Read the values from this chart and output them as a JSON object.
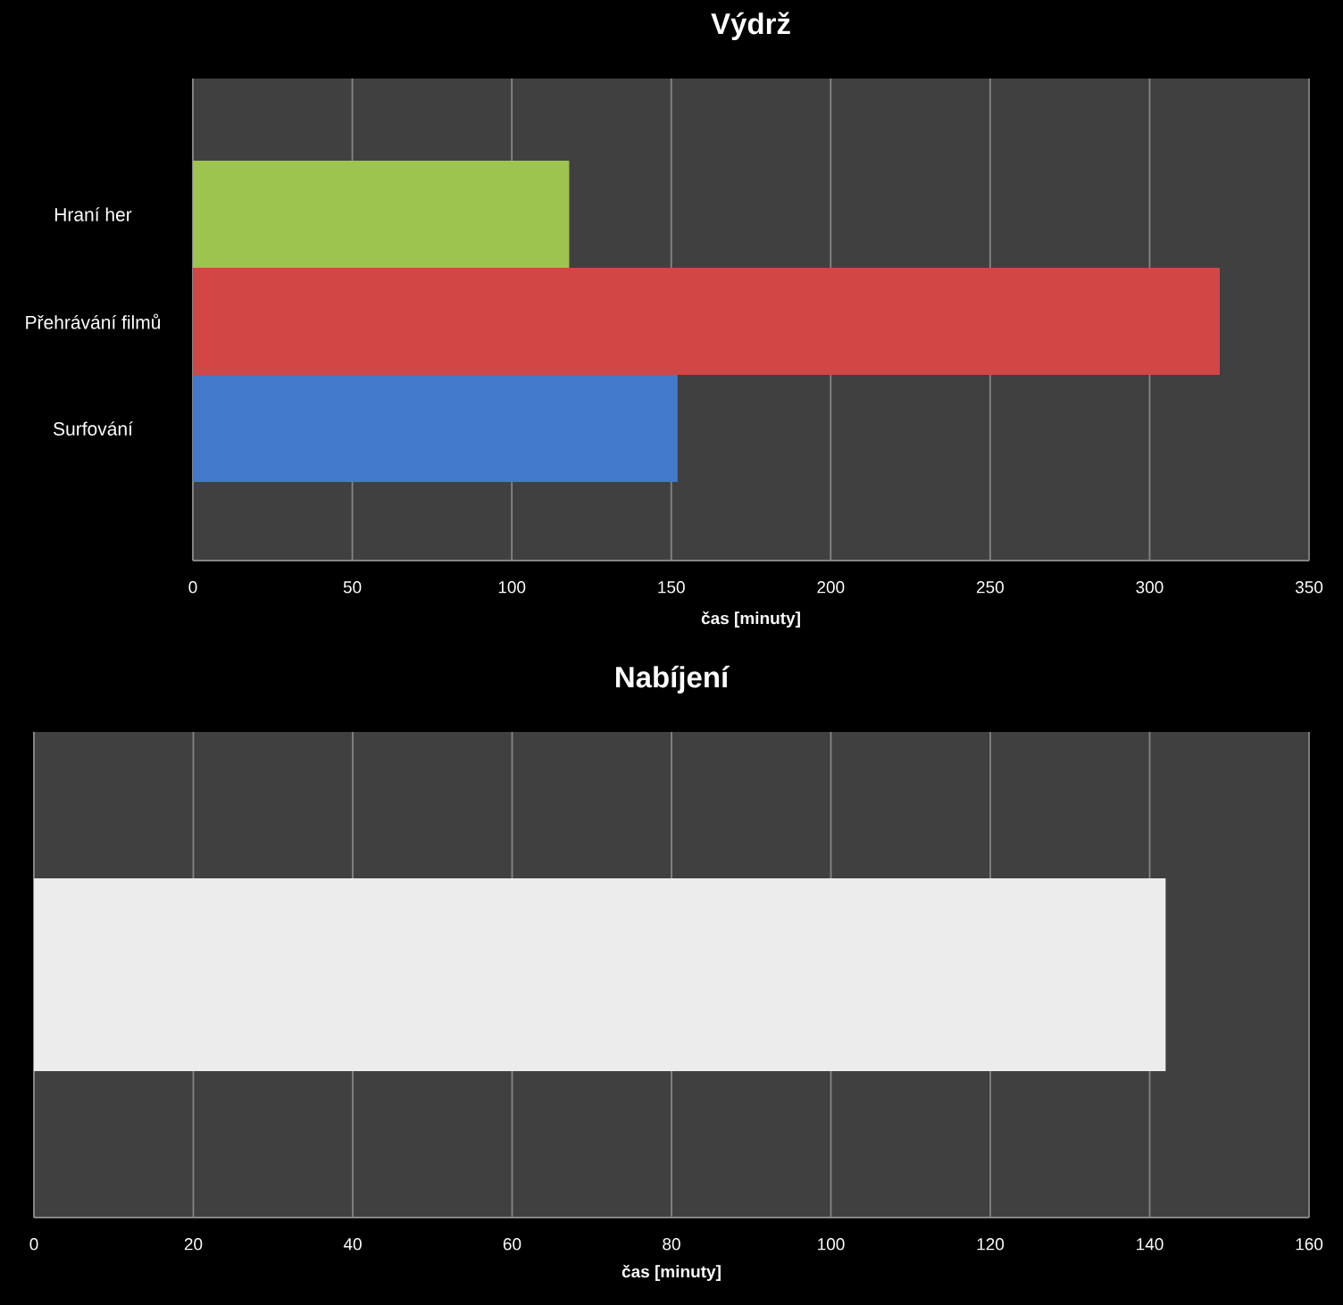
{
  "chart_data": [
    {
      "type": "bar",
      "orientation": "horizontal",
      "title": "Výdrž",
      "categories": [
        "Hraní her",
        "Přehrávání filmů",
        "Surfování"
      ],
      "values": [
        118,
        322,
        152
      ],
      "colors": [
        "#9cc44f",
        "#d24646",
        "#4279c8"
      ],
      "xlim": [
        0,
        350
      ],
      "xticks": [
        0,
        50,
        100,
        150,
        200,
        250,
        300,
        350
      ],
      "xlabel": "čas [minuty]",
      "grid": "x"
    },
    {
      "type": "bar",
      "orientation": "horizontal",
      "title": "Nabíjení",
      "categories": [
        null
      ],
      "values": [
        142
      ],
      "colors": [
        "#ececec"
      ],
      "xlim": [
        0,
        160
      ],
      "xticks": [
        0,
        20,
        40,
        60,
        80,
        100,
        120,
        140,
        160
      ],
      "xlabel": "čas [minuty]",
      "grid": "x"
    }
  ]
}
